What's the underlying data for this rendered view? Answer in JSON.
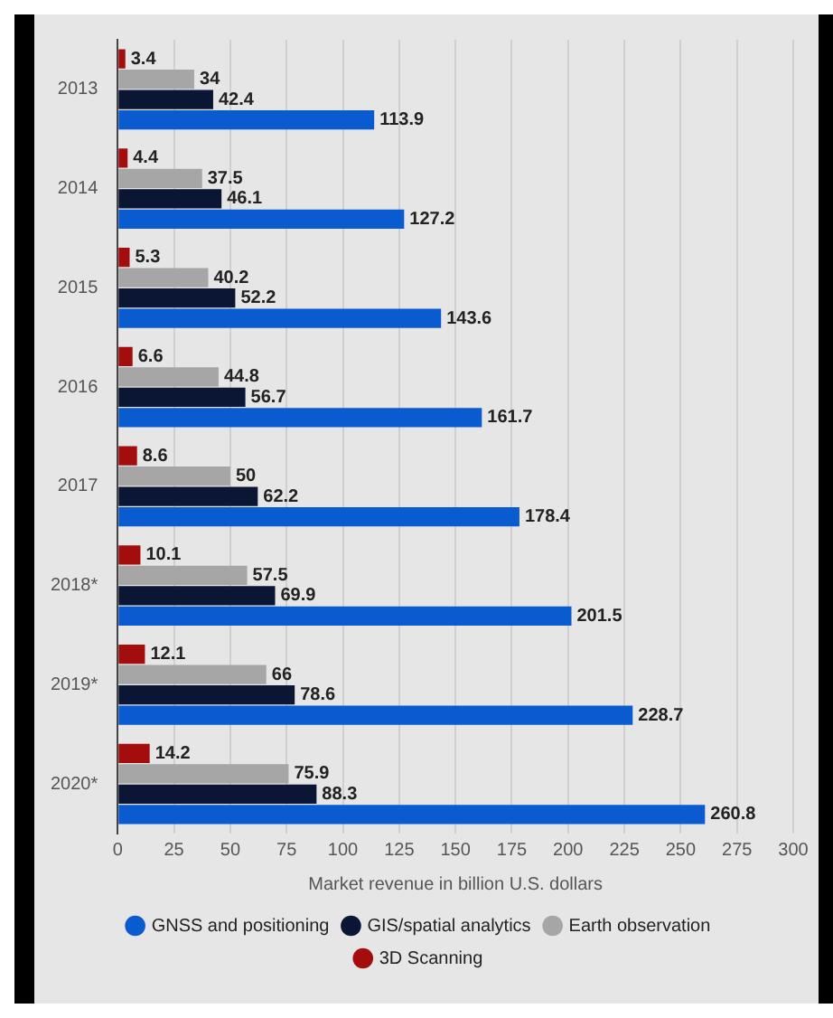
{
  "chart_data": {
    "type": "bar",
    "orientation": "horizontal",
    "xlabel": "Market revenue in billion U.S. dollars",
    "categories": [
      "2013",
      "2014",
      "2015",
      "2016",
      "2017",
      "2018*",
      "2019*",
      "2020*"
    ],
    "series": [
      {
        "name": "GNSS and positioning",
        "color": "#0a5bd0",
        "values": [
          113.9,
          127.2,
          143.6,
          161.7,
          178.4,
          201.5,
          228.7,
          260.8
        ]
      },
      {
        "name": "GIS/spatial analytics",
        "color": "#0a1633",
        "values": [
          42.4,
          46.1,
          52.2,
          56.7,
          62.2,
          69.9,
          78.6,
          88.3
        ]
      },
      {
        "name": "Earth observation",
        "color": "#a6a6a6",
        "values": [
          34,
          37.5,
          40.2,
          44.8,
          50,
          57.5,
          66,
          75.9
        ]
      },
      {
        "name": "3D Scanning",
        "color": "#a30d0d",
        "values": [
          3.4,
          4.4,
          5.3,
          6.6,
          8.6,
          10.1,
          12.1,
          14.2
        ]
      }
    ],
    "xlim": [
      0,
      300
    ],
    "xticks": [
      0,
      25,
      50,
      75,
      100,
      125,
      150,
      175,
      200,
      225,
      250,
      275,
      300
    ],
    "grid": "x",
    "legend": "bottom",
    "data_labels": true
  }
}
